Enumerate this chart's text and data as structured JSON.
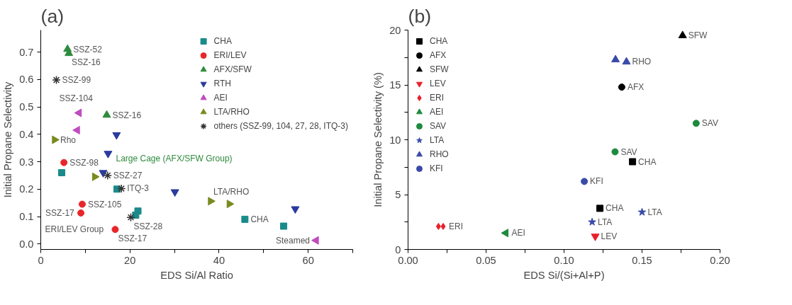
{
  "chart_data": [
    {
      "type": "scatter",
      "title": "(a)",
      "xlabel": "EDS Si/Al Ratio",
      "ylabel": "Initial Propane Selectivity",
      "xlim": [
        0,
        70
      ],
      "ylim": [
        -0.02,
        0.78
      ],
      "xticks": [
        0,
        {
          "value": 10,
          "label": null
        },
        20,
        {
          "value": 30,
          "label": null
        },
        40,
        {
          "value": 50,
          "label": null
        },
        60,
        {
          "value": 70,
          "label": null
        }
      ],
      "yticks": [
        {
          "value": 0,
          "label": "0.0"
        },
        0.1,
        0.2,
        0.3,
        0.4,
        0.5,
        0.6,
        0.7
      ],
      "grid": false,
      "legend": "top right",
      "series": [
        {
          "name": "CHA",
          "color": "#1a8a8a",
          "marker": "square",
          "x": [
            4.7,
            17.1,
            21.3,
            21.8,
            45.8,
            54.5
          ],
          "values": [
            0.26,
            0.2,
            0.105,
            0.12,
            0.09,
            0.065
          ]
        },
        {
          "name": "ERI/LEV",
          "color": "#e8262a",
          "marker": "circle",
          "x": [
            5.2,
            9.3,
            9.0,
            16.7
          ],
          "values": [
            0.297,
            0.145,
            0.113,
            0.053
          ]
        },
        {
          "name": "AFX/SFW",
          "color": "#2e8b3e",
          "marker": "triangle",
          "x": [
            6.0,
            6.3,
            14.8
          ],
          "values": [
            0.71,
            0.695,
            0.47
          ]
        },
        {
          "name": "RTH",
          "color": "#2b3a9e",
          "marker": "triangle_down",
          "x": [
            17,
            15.1,
            14,
            30.1,
            57.1
          ],
          "values": [
            0.398,
            0.33,
            0.26,
            0.19,
            0.128
          ]
        },
        {
          "name": "AEI",
          "color": "#c04bbf",
          "marker": "triangle_left",
          "x": [
            8.6,
            8.2,
            61.8
          ],
          "values": [
            0.478,
            0.415,
            0.013
          ]
        },
        {
          "name": "LTA/RHO",
          "color": "#7a8a1f",
          "marker": "triangle_right",
          "x": [
            3.1,
            12.1,
            38.1,
            42.3
          ],
          "values": [
            0.38,
            0.245,
            0.156,
            0.146
          ]
        },
        {
          "name": "others (SSZ-99, 104, 27, 28, ITQ-3)",
          "color": "#333333",
          "marker": "cross",
          "x": [
            3.5,
            15,
            18.1,
            20.2
          ],
          "values": [
            0.598,
            0.25,
            0.202,
            0.097
          ]
        }
      ],
      "annotations": [
        {
          "text": "SSZ-52",
          "x": 6.0,
          "y": 0.71
        },
        {
          "text": "SSZ-16",
          "x": 6.3,
          "y": 0.695
        },
        {
          "text": "SSZ-99",
          "x": 3.5,
          "y": 0.598
        },
        {
          "text": "SSZ-104",
          "x": 3.5,
          "y": 0.598
        },
        {
          "text": "SSZ-16",
          "x": 14.8,
          "y": 0.47
        },
        {
          "text": "Rho",
          "x": 3.1,
          "y": 0.38
        },
        {
          "text": "SSZ-98",
          "x": 5.2,
          "y": 0.297
        },
        {
          "text": "SSZ-27",
          "x": 15,
          "y": 0.25
        },
        {
          "text": "ITQ-3",
          "x": 18.1,
          "y": 0.202
        },
        {
          "text": "SSZ-105",
          "x": 9.3,
          "y": 0.145
        },
        {
          "text": "SSZ-28",
          "x": 20.2,
          "y": 0.097
        },
        {
          "text": "SSZ-17",
          "x": 9.0,
          "y": 0.113
        },
        {
          "text": "SSZ-17",
          "x": 16.7,
          "y": 0.053
        },
        {
          "text": "CHA",
          "x": 45.8,
          "y": 0.09
        },
        {
          "text": "LTA/RHO",
          "x": 38.1,
          "y": 0.156
        },
        {
          "text": "Steamed",
          "x": 61.8,
          "y": 0.013
        },
        "Large Cage (AFX/SFW Group)",
        {
          "text": "ERI/LEV Group",
          "x": 16.7,
          "y": 0.053
        }
      ]
    },
    {
      "type": "scatter",
      "title": "(b)",
      "xlabel": "EDS Si/(Si+Al+P)",
      "ylabel": "Initial Propane Selectivity (%)",
      "xlim": [
        0,
        0.2
      ],
      "ylim": [
        0,
        20
      ],
      "xticks": [
        {
          "value": 0,
          "label": "0.00"
        },
        {
          "value": 0.025,
          "label": null
        },
        {
          "value": 0.05,
          "label": "0.05"
        },
        {
          "value": 0.075,
          "label": null
        },
        {
          "value": 0.1,
          "label": "0.10"
        },
        {
          "value": 0.125,
          "label": null
        },
        {
          "value": 0.15,
          "label": "0.15"
        },
        {
          "value": 0.175,
          "label": null
        },
        {
          "value": 0.2,
          "label": "0.20"
        }
      ],
      "yticks": [
        0,
        {
          "value": 2.5,
          "label": null
        },
        5,
        {
          "value": 7.5,
          "label": null
        },
        10,
        {
          "value": 12.5,
          "label": null
        },
        15,
        {
          "value": 17.5,
          "label": null
        },
        20
      ],
      "grid": false,
      "legend": "top left",
      "series": [
        {
          "name": "CHA",
          "color": "#000000",
          "marker": "square",
          "x": [
            0.1439,
            0.123
          ],
          "values": [
            8.0,
            3.75
          ]
        },
        {
          "name": "AFX",
          "color": "#000000",
          "marker": "circle",
          "x": [
            0.137
          ],
          "values": [
            14.8
          ]
        },
        {
          "name": "SFW",
          "color": "#000000",
          "marker": "triangle",
          "x": [
            0.176
          ],
          "values": [
            19.5
          ]
        },
        {
          "name": "LEV",
          "color": "#e8202a",
          "marker": "triangle_down",
          "x": [
            0.12
          ],
          "values": [
            1.2
          ]
        },
        {
          "name": "ERI",
          "color": "#e8202a",
          "marker": "diamond",
          "x": [
            0.0195,
            0.0225
          ],
          "values": [
            2.1,
            2.1
          ]
        },
        {
          "name": "AEI",
          "color": "#1e8a3e",
          "marker": "triangle_left",
          "x": [
            0.0627
          ],
          "values": [
            1.5
          ]
        },
        {
          "name": "SAV",
          "color": "#1e8a3e",
          "marker": "circle",
          "x": [
            0.1327,
            0.1847
          ],
          "values": [
            8.9,
            11.5
          ]
        },
        {
          "name": "LTA",
          "color": "#3a4aa8",
          "marker": "star",
          "x": [
            0.118,
            0.15
          ],
          "values": [
            2.5,
            3.4
          ]
        },
        {
          "name": "RHO",
          "color": "#3a4aa8",
          "marker": "triangle",
          "x": [
            0.133,
            0.14
          ],
          "values": [
            17.3,
            17.1
          ]
        },
        {
          "name": "KFI",
          "color": "#3a4aa8",
          "marker": "circle",
          "x": [
            0.113
          ],
          "values": [
            6.2
          ]
        }
      ],
      "annotations": [
        {
          "text": "SFW",
          "x": 0.176,
          "y": 19.5
        },
        {
          "text": "RHO",
          "x": 0.14,
          "y": 17.1
        },
        {
          "text": "AFX",
          "x": 0.137,
          "y": 14.8
        },
        {
          "text": "SAV",
          "x": 0.1847,
          "y": 11.5
        },
        {
          "text": "SAV",
          "x": 0.1327,
          "y": 8.9
        },
        {
          "text": "CHA",
          "x": 0.1439,
          "y": 8.0
        },
        {
          "text": "KFI",
          "x": 0.113,
          "y": 6.2
        },
        {
          "text": "CHA",
          "x": 0.123,
          "y": 3.75
        },
        {
          "text": "LTA",
          "x": 0.15,
          "y": 3.4
        },
        {
          "text": "LTA",
          "x": 0.118,
          "y": 2.5
        },
        {
          "text": "LEV",
          "x": 0.12,
          "y": 1.2
        },
        {
          "text": "ERI",
          "x": 0.0225,
          "y": 2.1
        },
        {
          "text": "AEI",
          "x": 0.0627,
          "y": 1.5
        }
      ]
    }
  ]
}
